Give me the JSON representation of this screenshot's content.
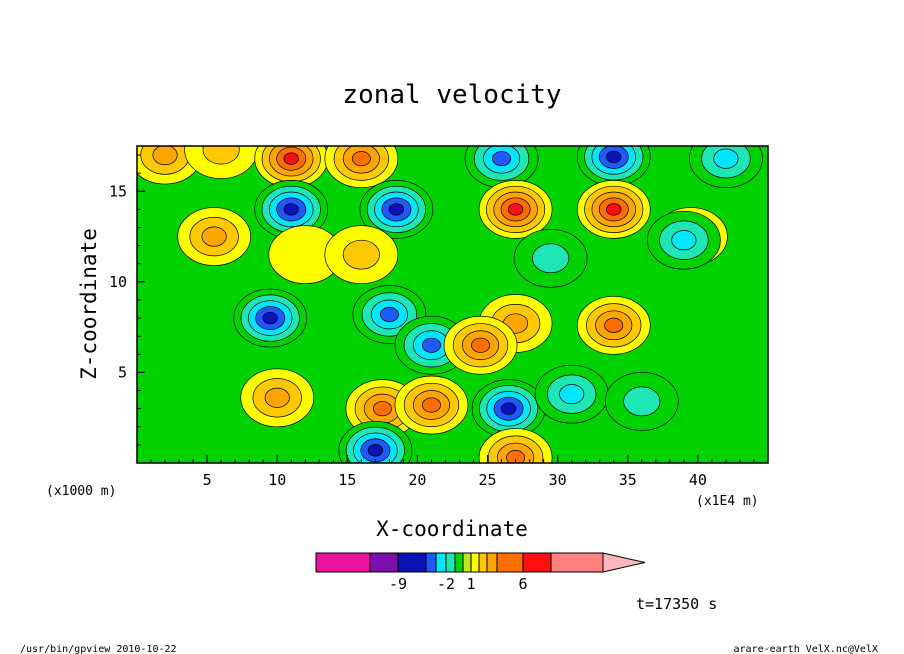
{
  "chart_data": {
    "type": "heatmap",
    "title": "zonal velocity",
    "xlabel": "X-coordinate",
    "ylabel": "Z-coordinate",
    "x_unit_left": "(x1000 m)",
    "x_unit_right": "(x1E4 m)",
    "xlim": [
      0,
      45
    ],
    "ylim": [
      0,
      17.5
    ],
    "x_ticks": [
      5,
      10,
      15,
      20,
      25,
      30,
      35,
      40
    ],
    "y_ticks": [
      5,
      10,
      15
    ],
    "colorbar": {
      "levels": [
        -12,
        -9,
        -6,
        -3,
        -2,
        -1,
        0,
        1,
        2,
        3,
        4,
        6,
        8,
        11
      ],
      "labels": [
        {
          "text": "-9",
          "value": -9
        },
        {
          "text": "-2",
          "value": -2
        },
        {
          "text": "1",
          "value": 1
        },
        {
          "text": "6",
          "value": 6
        }
      ],
      "colors": [
        "#e8149e",
        "#7d0fae",
        "#0a14b4",
        "#1e5aff",
        "#00e6ff",
        "#1ee6b4",
        "#00d200",
        "#bee61e",
        "#ffff00",
        "#ffc800",
        "#ffa500",
        "#ff6e00",
        "#ff0f0f",
        "#ff8080",
        "#ffb4be"
      ]
    },
    "features": [
      {
        "x": 2,
        "z": 17.0,
        "u": 3.5
      },
      {
        "x": 6,
        "z": 17.3,
        "u": 2.5
      },
      {
        "x": 11,
        "z": 16.8,
        "u": 6.0
      },
      {
        "x": 16,
        "z": 16.8,
        "u": 5.0
      },
      {
        "x": 26,
        "z": 16.8,
        "u": -6.0
      },
      {
        "x": 34,
        "z": 16.9,
        "u": -8.0
      },
      {
        "x": 42,
        "z": 16.8,
        "u": -3.0
      },
      {
        "x": 11,
        "z": 14.0,
        "u": -8.5
      },
      {
        "x": 18.5,
        "z": 14.0,
        "u": -8.0
      },
      {
        "x": 27,
        "z": 14.0,
        "u": 6.0
      },
      {
        "x": 34,
        "z": 14.0,
        "u": 7.0
      },
      {
        "x": 5.5,
        "z": 12.5,
        "u": 3.0
      },
      {
        "x": 12,
        "z": 11.5,
        "u": 1.5
      },
      {
        "x": 16,
        "z": 11.5,
        "u": 2.5
      },
      {
        "x": 29.5,
        "z": 11.3,
        "u": -2.0
      },
      {
        "x": 39.5,
        "z": 12.5,
        "u": 2.0
      },
      {
        "x": 39,
        "z": 12.3,
        "u": -3.0
      },
      {
        "x": 9.5,
        "z": 8.0,
        "u": -8.5
      },
      {
        "x": 18,
        "z": 8.2,
        "u": -4.0
      },
      {
        "x": 21,
        "z": 6.5,
        "u": -5.0
      },
      {
        "x": 34,
        "z": 7.6,
        "u": 5.5
      },
      {
        "x": 27,
        "z": 7.7,
        "u": 3.5
      },
      {
        "x": 24.5,
        "z": 6.5,
        "u": 4.5
      },
      {
        "x": 10,
        "z": 3.6,
        "u": 3.0
      },
      {
        "x": 17.5,
        "z": 3.0,
        "u": 5.5
      },
      {
        "x": 21,
        "z": 3.2,
        "u": 5.0
      },
      {
        "x": 26.5,
        "z": 3.0,
        "u": -7.0
      },
      {
        "x": 31,
        "z": 3.8,
        "u": -3.0
      },
      {
        "x": 36,
        "z": 3.4,
        "u": -1.3
      },
      {
        "x": 17,
        "z": 0.7,
        "u": -7.0
      },
      {
        "x": 27,
        "z": 0.3,
        "u": 5.0
      }
    ]
  },
  "time_label": "t=17350 s",
  "footer_left": "/usr/bin/gpview   2010-10-22",
  "footer_right": "arare-earth_VelX.nc@VelX"
}
